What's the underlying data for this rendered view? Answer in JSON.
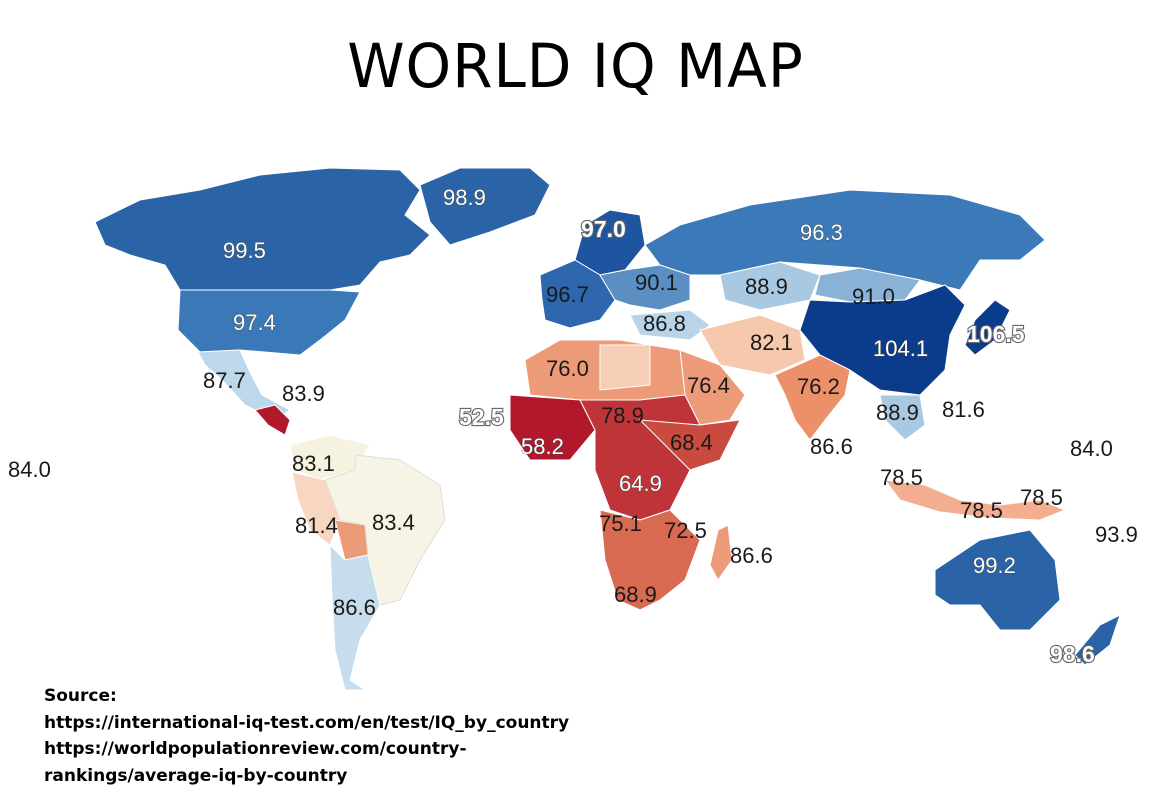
{
  "title": "WORLD IQ MAP",
  "source": {
    "label": "Source:",
    "lines": [
      "https://international-iq-test.com/en/test/IQ_by_country",
      "https://worldpopulationreview.com/country-",
      "rankings/average-iq-by-country"
    ]
  },
  "regions": [
    {
      "name": "Greenland",
      "value": "98.9",
      "color": "#2b63a7"
    },
    {
      "name": "Canada",
      "value": "99.5",
      "color": "#2b63a7"
    },
    {
      "name": "USA",
      "value": "97.4",
      "color": "#3b78b8"
    },
    {
      "name": "Mexico",
      "value": "87.7",
      "color": "#bcd8ea"
    },
    {
      "name": "Caribbean",
      "value": "83.9",
      "color": "#f7f4e6"
    },
    {
      "name": "Pacific",
      "value": "84.0",
      "color": "#f7f4e6"
    },
    {
      "name": "Colombia",
      "value": "83.1",
      "color": "#f5f2e0"
    },
    {
      "name": "Peru",
      "value": "81.4",
      "color": "#f7d7c2"
    },
    {
      "name": "Brazil",
      "value": "83.4",
      "color": "#f7f4e6"
    },
    {
      "name": "Argentina",
      "value": "86.6",
      "color": "#c7dced"
    },
    {
      "name": "Finland",
      "value": "97.0",
      "color": "#1f55a0"
    },
    {
      "name": "France",
      "value": "96.7",
      "color": "#2e67ad"
    },
    {
      "name": "Balkans",
      "value": "90.1",
      "color": "#8fb6d8"
    },
    {
      "name": "Turkey",
      "value": "86.8",
      "color": "#b9d3e8"
    },
    {
      "name": "Russia",
      "value": "96.3",
      "color": "#3c79b8"
    },
    {
      "name": "Kazakhstan",
      "value": "88.9",
      "color": "#a9c9e2"
    },
    {
      "name": "Mongolia",
      "value": "91.0",
      "color": "#8ab2d6"
    },
    {
      "name": "China",
      "value": "104.1",
      "color": "#0b3c8c"
    },
    {
      "name": "Japan",
      "value": "106.5",
      "color": "#0b3c8c"
    },
    {
      "name": "Iran",
      "value": "82.1",
      "color": "#f6c8ad"
    },
    {
      "name": "India",
      "value": "76.2",
      "color": "#ec9069"
    },
    {
      "name": "Sri Lanka",
      "value": "86.6",
      "color": "#c8dcec"
    },
    {
      "name": "Thailand",
      "value": "88.9",
      "color": "#a9c9e2"
    },
    {
      "name": "Philippines",
      "value": "81.6",
      "color": "#f6d4bf"
    },
    {
      "name": "Micronesia",
      "value": "84.0",
      "color": "#f7f4e6"
    },
    {
      "name": "Indonesia west",
      "value": "78.5",
      "color": "#f2ae8e"
    },
    {
      "name": "Indonesia east",
      "value": "78.5",
      "color": "#f2ae8e"
    },
    {
      "name": "Papua",
      "value": "78.5",
      "color": "#f2ae8e"
    },
    {
      "name": "Fiji",
      "value": "93.9",
      "color": "#6f9fcb"
    },
    {
      "name": "Australia",
      "value": "99.2",
      "color": "#2b63a7"
    },
    {
      "name": "New Zealand",
      "value": "98.6",
      "color": "#2b63a7"
    },
    {
      "name": "Algeria",
      "value": "76.0",
      "color": "#ec9a77"
    },
    {
      "name": "Arabia",
      "value": "76.4",
      "color": "#ec9a77"
    },
    {
      "name": "Western Sahara",
      "value": "52.5",
      "color": "#b2182b"
    },
    {
      "name": "West Africa",
      "value": "58.2",
      "color": "#b2182b"
    },
    {
      "name": "Sudan",
      "value": "78.9",
      "color": "#f2b395"
    },
    {
      "name": "Ethiopia",
      "value": "68.4",
      "color": "#c94a3f"
    },
    {
      "name": "Congo",
      "value": "64.9",
      "color": "#bf3438"
    },
    {
      "name": "Angola",
      "value": "75.1",
      "color": "#e47e5f"
    },
    {
      "name": "Tanzania",
      "value": "72.5",
      "color": "#d96a52"
    },
    {
      "name": "Madagascar",
      "value": "86.6",
      "color": "#ec9a77"
    },
    {
      "name": "South Africa",
      "value": "68.9",
      "color": "#c94a3f"
    }
  ]
}
